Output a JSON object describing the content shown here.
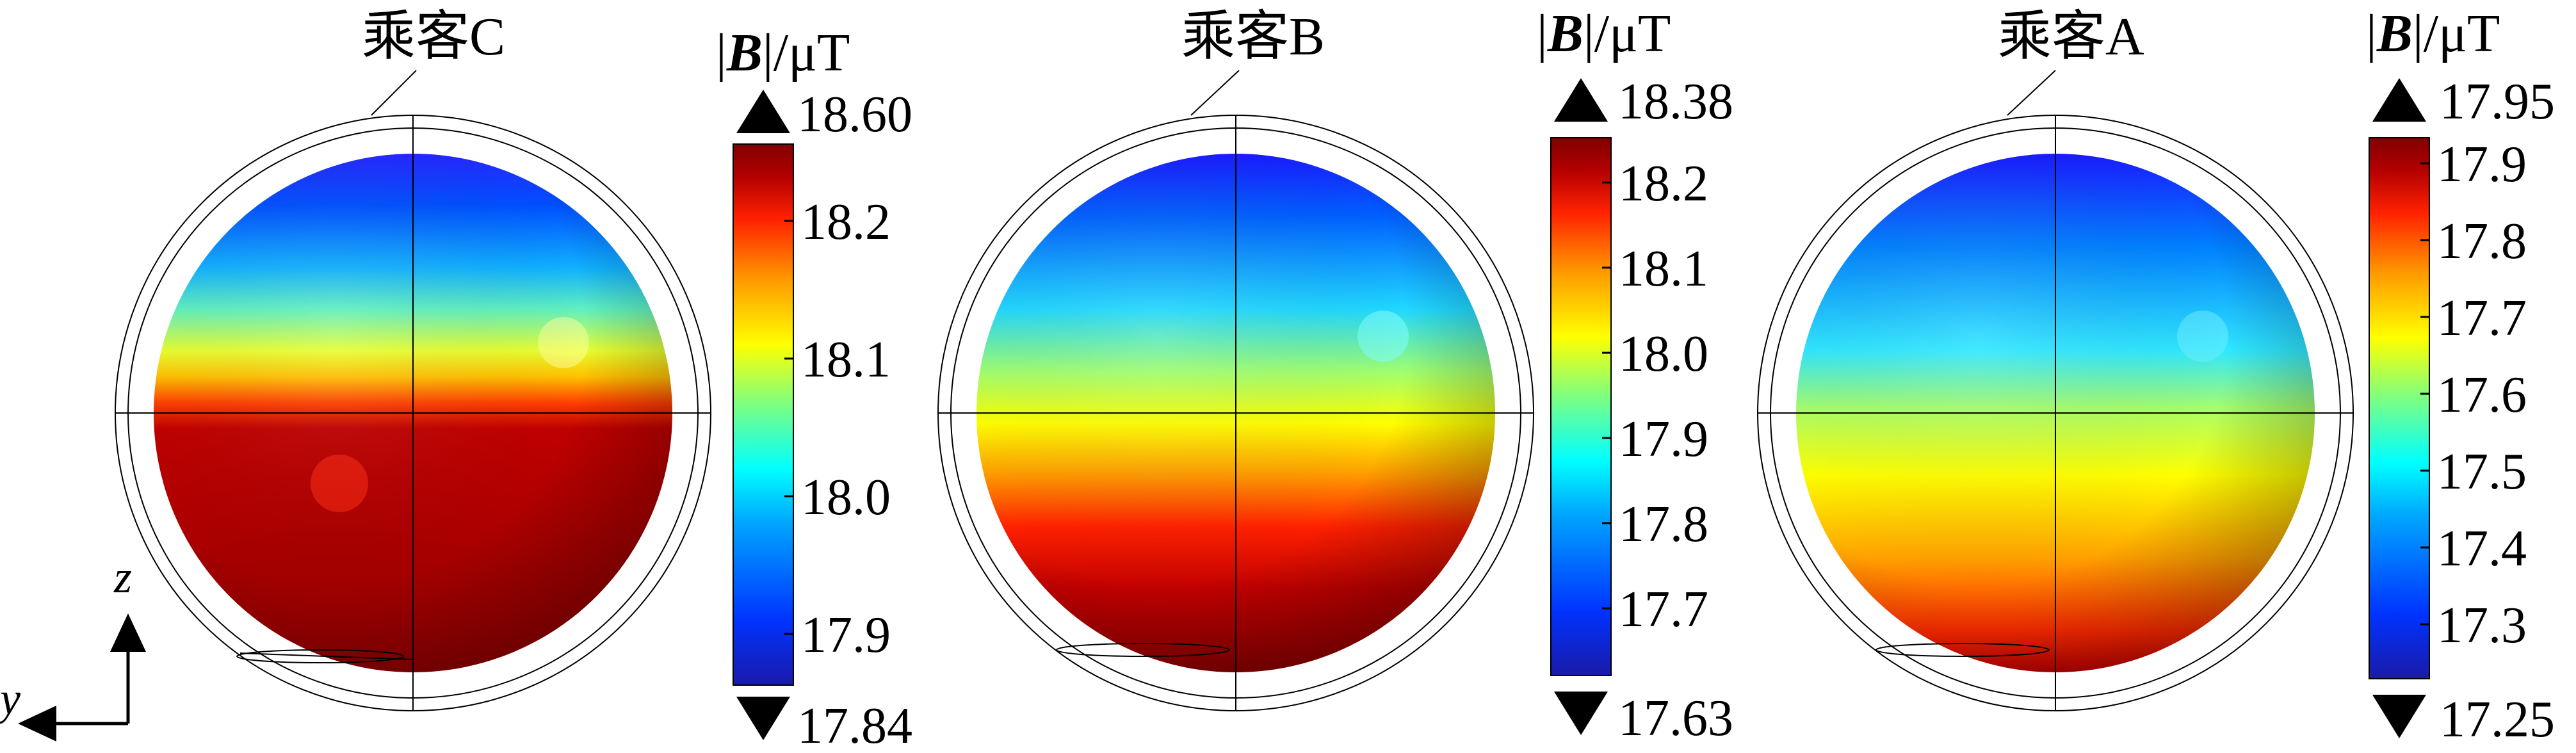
{
  "panels": [
    {
      "id": "C",
      "label": "乘客C",
      "colorbar": {
        "title_symbol": "B",
        "title_unit": "/μT",
        "max_label": "18.60",
        "min_label": "17.84",
        "ticks": [
          "18.2",
          "18.1",
          "18.0",
          "17.9"
        ]
      }
    },
    {
      "id": "B",
      "label": "乘客B",
      "colorbar": {
        "title_symbol": "B",
        "title_unit": "/μT",
        "max_label": "18.38",
        "min_label": "17.63",
        "ticks": [
          "18.2",
          "18.1",
          "18.0",
          "17.9",
          "17.8",
          "17.7"
        ]
      }
    },
    {
      "id": "A",
      "label": "乘客A",
      "colorbar": {
        "title_symbol": "B",
        "title_unit": "/μT",
        "max_label": "17.95",
        "min_label": "17.25",
        "ticks": [
          "17.9",
          "17.8",
          "17.7",
          "17.6",
          "17.5",
          "17.4",
          "17.3"
        ]
      }
    }
  ],
  "axes": {
    "z_label": "z",
    "y_label": "y"
  },
  "colors": {
    "colormap": [
      "#1a1aa8",
      "#0033ff",
      "#00a6ff",
      "#00ffff",
      "#7fff80",
      "#ffff00",
      "#ff9900",
      "#ff2200",
      "#b30000",
      "#800000"
    ],
    "outline": "#000000"
  }
}
